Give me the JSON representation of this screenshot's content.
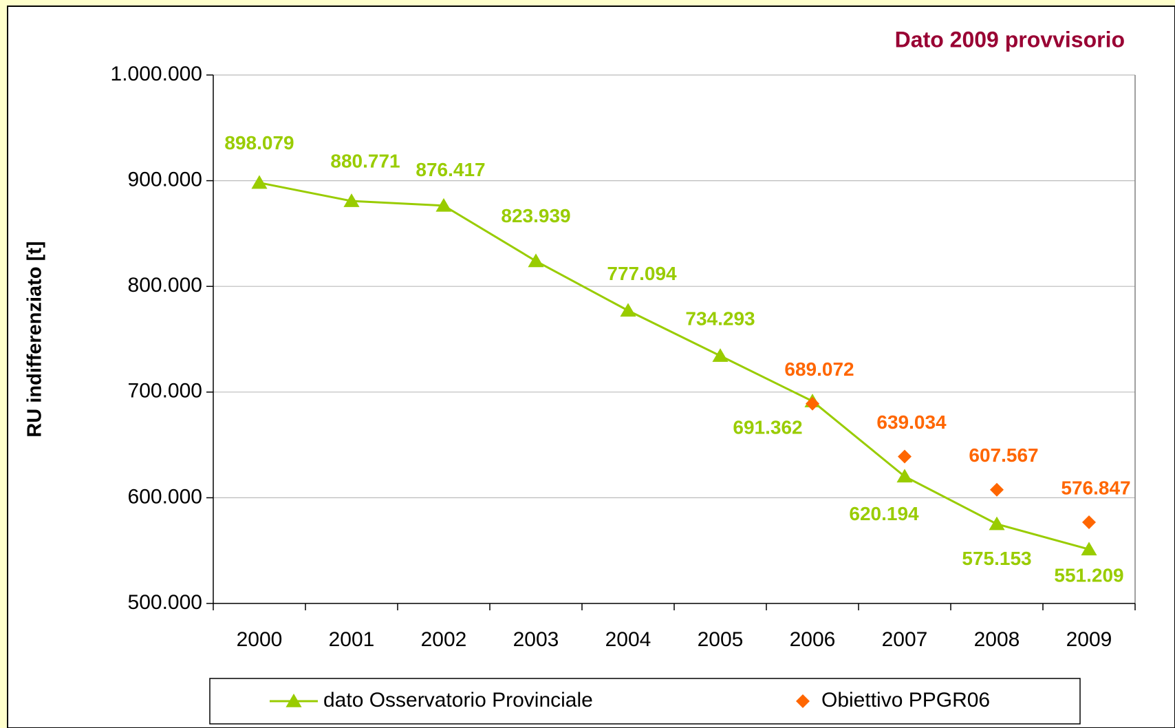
{
  "chart_data": {
    "type": "line",
    "annotation": "Dato 2009 provvisorio",
    "y_label": "RU indifferenziato [t]",
    "categories": [
      "2000",
      "2001",
      "2002",
      "2003",
      "2004",
      "2005",
      "2006",
      "2007",
      "2008",
      "2009"
    ],
    "series": [
      {
        "name": "dato Osservatorio Provinciale",
        "color": "#99CC00",
        "marker": "triangle",
        "values": [
          898079,
          880771,
          876417,
          823939,
          777094,
          734293,
          691362,
          620194,
          575153,
          551209
        ],
        "value_labels": [
          "898.079",
          "880.771",
          "876.417",
          "823.939",
          "777.094",
          "734.293",
          "691.362",
          "620.194",
          "575.153",
          "551.209"
        ]
      },
      {
        "name": "Obiettivo PPGR06",
        "color": "#FF6600",
        "marker": "diamond",
        "values": [
          null,
          null,
          null,
          null,
          null,
          null,
          689072,
          639034,
          607567,
          576847
        ],
        "value_labels": [
          null,
          null,
          null,
          null,
          null,
          null,
          "689.072",
          "639.034",
          "607.567",
          "576.847"
        ]
      }
    ],
    "ylim": [
      500000,
      1000000
    ],
    "yticks": [
      {
        "value": 500000,
        "label": "500.000"
      },
      {
        "value": 600000,
        "label": "600.000"
      },
      {
        "value": 700000,
        "label": "700.000"
      },
      {
        "value": 800000,
        "label": "800.000"
      },
      {
        "value": 900000,
        "label": "900.000"
      },
      {
        "value": 1000000,
        "label": "1.000.000"
      }
    ],
    "grid": true,
    "legend": "bottom"
  }
}
